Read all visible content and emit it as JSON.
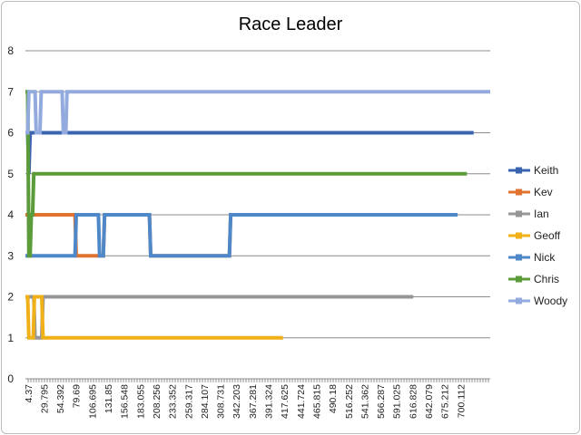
{
  "chart_data": {
    "type": "line",
    "title": "Race Leader",
    "xlabel": "",
    "ylabel": "",
    "ylim": [
      0,
      8
    ],
    "yticks": [
      0,
      1,
      2,
      3,
      4,
      5,
      6,
      7,
      8
    ],
    "xlim": [
      4.37,
      760
    ],
    "xtick_labels": [
      "4.37",
      "29.795",
      "54.392",
      "79.69",
      "106.695",
      "131.85",
      "156.548",
      "183.055",
      "208.256",
      "233.352",
      "259.317",
      "284.107",
      "308.731",
      "342.203",
      "367.281",
      "391.324",
      "417.625",
      "441.724",
      "465.815",
      "490.18",
      "516.252",
      "541.362",
      "566.287",
      "591.025",
      "616.828",
      "642.079",
      "675.212",
      "700.112"
    ],
    "grid": "horizontal",
    "legend_position": "right",
    "series": [
      {
        "name": "Keith",
        "color": "#3A64B0",
        "x": [
          4.37,
          8,
          10,
          12,
          733
        ],
        "y": [
          6,
          6,
          5,
          6,
          6
        ]
      },
      {
        "name": "Kev",
        "color": "#E07330",
        "x": [
          4.37,
          85,
          87,
          131,
          133,
          206,
          208,
          336,
          338,
          677
        ],
        "y": [
          4,
          4,
          3,
          3,
          4,
          4,
          3,
          3,
          4,
          4
        ]
      },
      {
        "name": "Ian",
        "color": "#969696",
        "x": [
          4.37,
          18,
          20,
          31,
          33,
          635
        ],
        "y": [
          2,
          2,
          1,
          1,
          2,
          2
        ]
      },
      {
        "name": "Geoff",
        "color": "#F0B018",
        "x": [
          4.37,
          8,
          10,
          17,
          19,
          31,
          33,
          423
        ],
        "y": [
          2,
          2,
          1,
          1,
          2,
          2,
          1,
          1
        ]
      },
      {
        "name": "Nick",
        "color": "#4E88C8",
        "x": [
          4.37,
          85,
          87,
          123,
          125,
          131,
          133,
          206,
          208,
          336,
          338,
          707
        ],
        "y": [
          3,
          3,
          4,
          4,
          3,
          3,
          4,
          4,
          3,
          3,
          4,
          4
        ]
      },
      {
        "name": "Chris",
        "color": "#5B9B3A",
        "x": [
          4.37,
          8,
          10,
          12,
          14,
          16,
          18,
          722
        ],
        "y": [
          7,
          7,
          3,
          3,
          4,
          4,
          5,
          5
        ]
      },
      {
        "name": "Woody",
        "color": "#93AADE",
        "x": [
          4.37,
          8,
          10,
          20,
          22,
          28,
          30,
          64,
          66,
          70,
          72,
          760
        ],
        "y": [
          6,
          6,
          7,
          7,
          6,
          6,
          7,
          7,
          6,
          6,
          7,
          7
        ]
      }
    ]
  }
}
